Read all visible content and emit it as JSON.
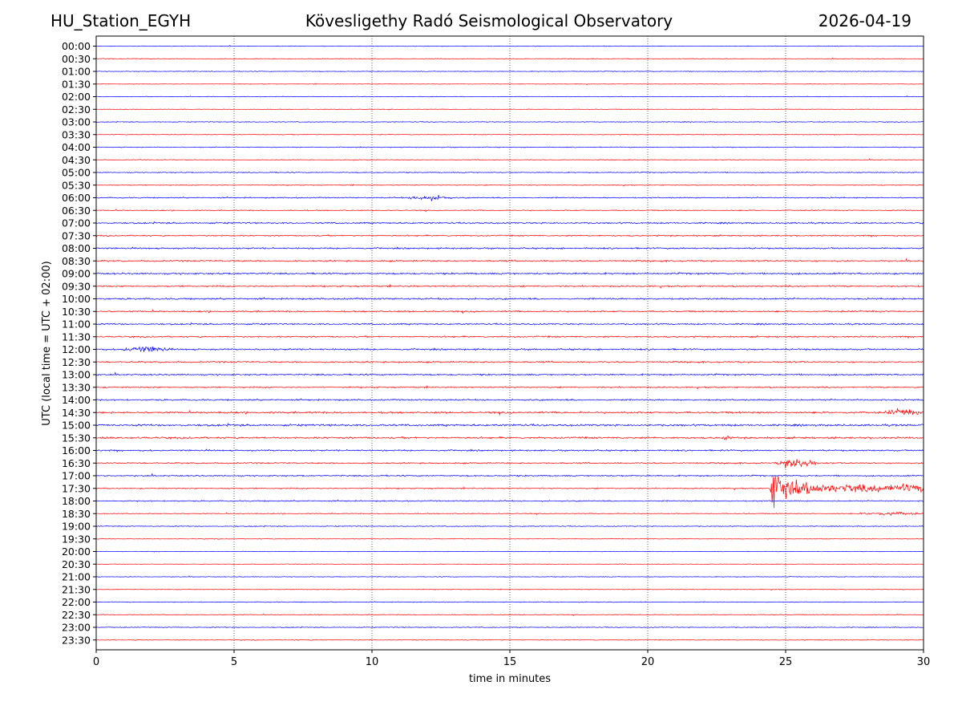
{
  "header": {
    "station": "HU_Station_EGYH",
    "observatory": "Kövesligethy Radó Seismological Observatory",
    "date": "2026-04-19"
  },
  "chart_data": {
    "type": "line",
    "title": "Kövesligethy Radó Seismological Observatory",
    "xlabel": "time in minutes",
    "ylabel": "UTC (local time = UTC + 02:00)",
    "xlim": [
      0,
      30
    ],
    "xticks": [
      0,
      5,
      10,
      15,
      20,
      25,
      30
    ],
    "grid": "vertical dotted at x ticks",
    "series_colors": [
      "#0000ff",
      "#ff0000"
    ],
    "row_labels": [
      "00:00",
      "00:30",
      "01:00",
      "01:30",
      "02:00",
      "02:30",
      "03:00",
      "03:30",
      "04:00",
      "04:30",
      "05:00",
      "05:30",
      "06:00",
      "06:30",
      "07:00",
      "07:30",
      "08:00",
      "08:30",
      "09:00",
      "09:30",
      "10:00",
      "10:30",
      "11:00",
      "11:30",
      "12:00",
      "12:30",
      "13:00",
      "13:30",
      "14:00",
      "14:30",
      "15:00",
      "15:30",
      "16:00",
      "16:30",
      "17:00",
      "17:30",
      "18:00",
      "18:30",
      "19:00",
      "19:30",
      "20:00",
      "20:30",
      "21:00",
      "21:30",
      "22:00",
      "22:30",
      "23:00",
      "23:30"
    ],
    "row_noise_level": [
      0.4,
      0.4,
      0.4,
      0.35,
      0.4,
      0.35,
      0.45,
      0.4,
      0.5,
      0.45,
      0.55,
      0.5,
      0.7,
      0.6,
      0.9,
      0.8,
      0.9,
      0.9,
      1.0,
      0.9,
      1.0,
      0.9,
      0.9,
      0.9,
      1.0,
      0.9,
      0.9,
      0.8,
      0.9,
      1.1,
      1.2,
      1.1,
      0.9,
      0.8,
      0.8,
      0.7,
      0.7,
      0.5,
      0.5,
      0.35,
      0.35,
      0.35,
      0.4,
      0.4,
      0.5,
      0.45,
      0.5,
      0.45
    ],
    "events": [
      {
        "row": "12:00",
        "start_min": 0.8,
        "end_min": 2.8,
        "amplitude": 3.0
      },
      {
        "row": "06:00",
        "start_min": 11.2,
        "end_min": 13.0,
        "amplitude": 2.5
      },
      {
        "row": "15:30",
        "start_min": 22.7,
        "end_min": 23.0,
        "amplitude": 4.0
      },
      {
        "row": "14:30",
        "start_min": 28.5,
        "end_min": 30.0,
        "amplitude": 3.0
      },
      {
        "row": "16:30",
        "start_min": 24.6,
        "end_min": 26.2,
        "amplitude": 6.0
      },
      {
        "row": "17:30",
        "start_min": 24.4,
        "end_min": 30.0,
        "amplitude": 24.0
      },
      {
        "row": "18:30",
        "start_min": 27.5,
        "end_min": 30.0,
        "amplitude": 1.8
      }
    ]
  }
}
